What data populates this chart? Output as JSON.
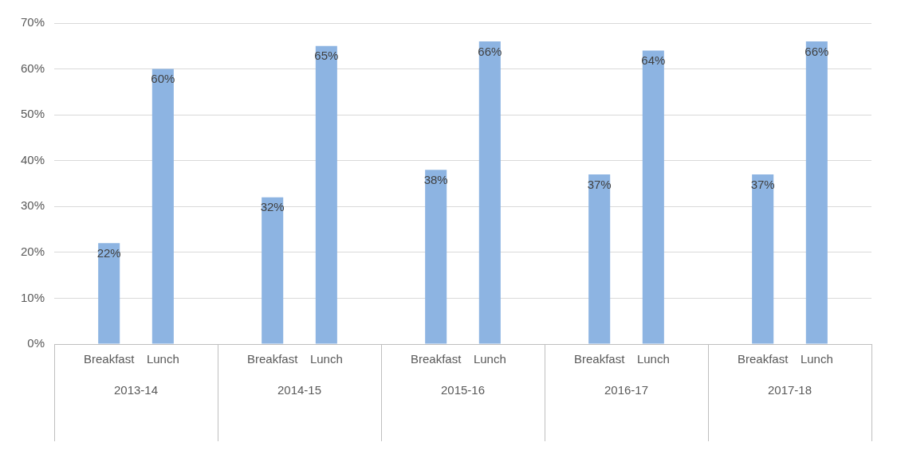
{
  "chart_data": {
    "type": "bar",
    "categories": [
      "2013-14",
      "2014-15",
      "2015-16",
      "2016-17",
      "2017-18"
    ],
    "series": [
      {
        "name": "Breakfast",
        "color": "#8db4e2",
        "values": [
          22,
          32,
          38,
          37,
          37
        ],
        "value_labels": [
          "22%",
          "32%",
          "38%",
          "37%",
          "37%"
        ]
      },
      {
        "name": "Lunch",
        "color": "#8db4e2",
        "values": [
          60,
          65,
          66,
          64,
          66
        ],
        "value_labels": [
          "60%",
          "65%",
          "66%",
          "64%",
          "66%"
        ]
      }
    ],
    "ylim": [
      0,
      70
    ],
    "yticks": [
      {
        "value": 0,
        "label": "0%"
      },
      {
        "value": 10,
        "label": "10%"
      },
      {
        "value": 20,
        "label": "20%"
      },
      {
        "value": 30,
        "label": "30%"
      },
      {
        "value": 40,
        "label": "40%"
      },
      {
        "value": 50,
        "label": "50%"
      },
      {
        "value": 60,
        "label": "60%"
      },
      {
        "value": 70,
        "label": "70%"
      }
    ],
    "grid": "y",
    "legend": false
  }
}
